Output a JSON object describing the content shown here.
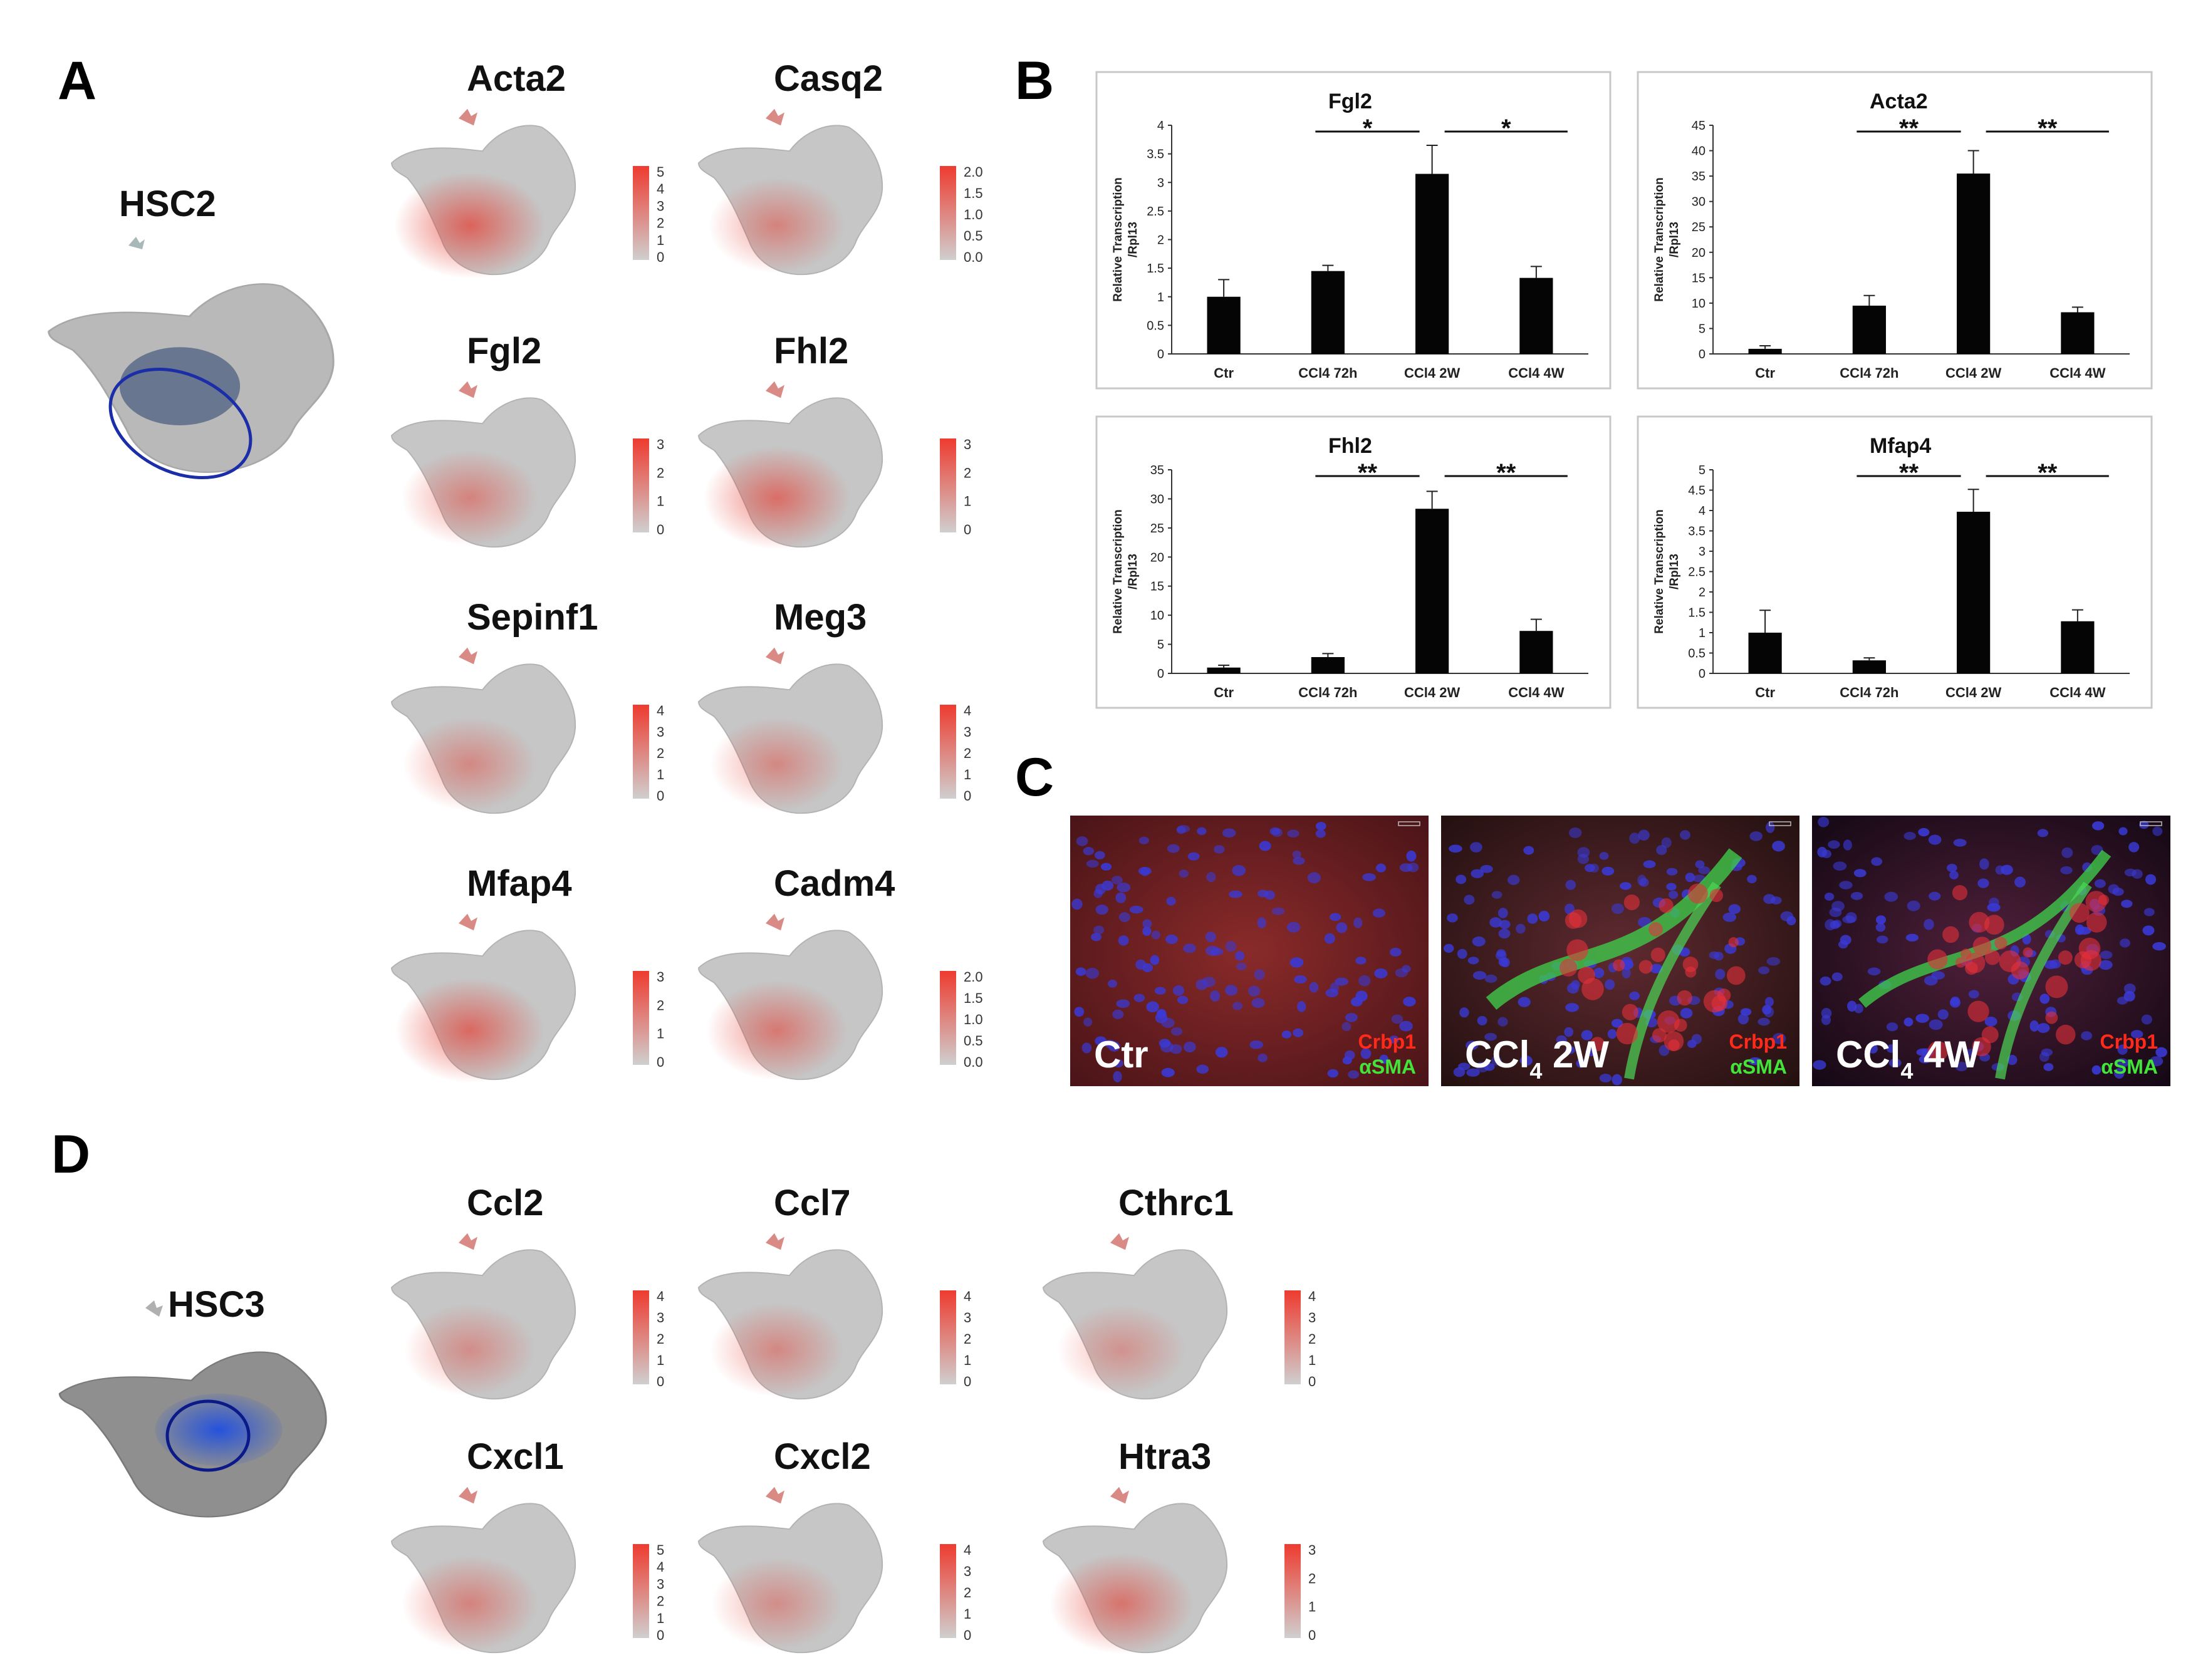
{
  "panel_labels": {
    "A": "A",
    "B": "B",
    "C": "C",
    "D": "D"
  },
  "colors": {
    "grey": "#c4c4c4",
    "red": "#e8453c",
    "cluster_blue": "#1b2ea8",
    "hsc3_blue": "#1f4fe0"
  },
  "cluster_maps": [
    {
      "label": "HSC2"
    },
    {
      "label": "HSC3"
    }
  ],
  "feature_maps_A": [
    {
      "gene": "Acta2",
      "ticks": [
        "5",
        "4",
        "3",
        "2",
        "1",
        "0"
      ],
      "level": 0.65
    },
    {
      "gene": "Casq2",
      "ticks": [
        "2.0",
        "1.5",
        "1.0",
        "0.5",
        "0.0"
      ],
      "level": 0.35
    },
    {
      "gene": "Fgl2",
      "ticks": [
        "3",
        "2",
        "1",
        "0"
      ],
      "level": 0.35
    },
    {
      "gene": "Fhl2",
      "ticks": [
        "3",
        "2",
        "1",
        "0"
      ],
      "level": 0.55
    },
    {
      "gene": "Sepinf1",
      "ticks": [
        "4",
        "3",
        "2",
        "1",
        "0"
      ],
      "level": 0.3
    },
    {
      "gene": "Meg3",
      "ticks": [
        "4",
        "3",
        "2",
        "1",
        "0"
      ],
      "level": 0.3
    },
    {
      "gene": "Mfap4",
      "ticks": [
        "3",
        "2",
        "1",
        "0"
      ],
      "level": 0.6
    },
    {
      "gene": "Cadm4",
      "ticks": [
        "2.0",
        "1.5",
        "1.0",
        "0.5",
        "0.0"
      ],
      "level": 0.45
    }
  ],
  "feature_maps_D": [
    {
      "gene": "Ccl2",
      "ticks": [
        "4",
        "3",
        "2",
        "1",
        "0"
      ],
      "level": 0.25
    },
    {
      "gene": "Ccl7",
      "ticks": [
        "4",
        "3",
        "2",
        "1",
        "0"
      ],
      "level": 0.3
    },
    {
      "gene": "Cthrc1",
      "ticks": [
        "4",
        "3",
        "2",
        "1",
        "0"
      ],
      "level": 0.2
    },
    {
      "gene": "Cxcl1",
      "ticks": [
        "5",
        "4",
        "3",
        "2",
        "1",
        "0"
      ],
      "level": 0.35
    },
    {
      "gene": "Cxcl2",
      "ticks": [
        "4",
        "3",
        "2",
        "1",
        "0"
      ],
      "level": 0.25
    },
    {
      "gene": "Htra3",
      "ticks": [
        "3",
        "2",
        "1",
        "0"
      ],
      "level": 0.5
    }
  ],
  "chart_data": [
    {
      "type": "bar",
      "title": "Fgl2",
      "ylabel": [
        "Relative Transcription",
        "/Rpl13"
      ],
      "categories": [
        "Ctr",
        "CCl4 72h",
        "CCl4 2W",
        "CCl4 4W"
      ],
      "values": [
        1.0,
        1.45,
        3.15,
        1.33
      ],
      "errors": [
        0.3,
        0.1,
        0.5,
        0.2
      ],
      "ylim": [
        0,
        4
      ],
      "yticks": [
        "0",
        "0.5",
        "1",
        "1.5",
        "2",
        "2.5",
        "3",
        "3.5",
        "4"
      ],
      "significance": [
        {
          "from": 1,
          "to": 2,
          "label": "*"
        },
        {
          "from": 2,
          "to": 3,
          "label": "*"
        }
      ]
    },
    {
      "type": "bar",
      "title": "Acta2",
      "ylabel": [
        "Relative Transcription",
        "/Rpl13"
      ],
      "categories": [
        "Ctr",
        "CCl4 72h",
        "CCl4 2W",
        "CCl4 4W"
      ],
      "values": [
        1.0,
        9.5,
        35.5,
        8.2
      ],
      "errors": [
        0.6,
        2.0,
        4.5,
        1.0
      ],
      "ylim": [
        0,
        45
      ],
      "yticks": [
        "0",
        "5",
        "10",
        "15",
        "20",
        "25",
        "30",
        "35",
        "40",
        "45"
      ],
      "significance": [
        {
          "from": 1,
          "to": 2,
          "label": "**"
        },
        {
          "from": 2,
          "to": 3,
          "label": "**"
        }
      ]
    },
    {
      "type": "bar",
      "title": "Fhl2",
      "ylabel": [
        "Relative Transcription",
        "/Rpl13"
      ],
      "categories": [
        "Ctr",
        "CCl4 72h",
        "CCl4 2W",
        "CCl4 4W"
      ],
      "values": [
        1.0,
        2.8,
        28.3,
        7.3
      ],
      "errors": [
        0.4,
        0.6,
        3.0,
        2.0
      ],
      "ylim": [
        0,
        35
      ],
      "yticks": [
        "0",
        "5",
        "10",
        "15",
        "20",
        "25",
        "30",
        "35"
      ],
      "significance": [
        {
          "from": 1,
          "to": 2,
          "label": "**"
        },
        {
          "from": 2,
          "to": 3,
          "label": "**"
        }
      ]
    },
    {
      "type": "bar",
      "title": "Mfap4",
      "ylabel": [
        "Relative Transcription",
        "/Rpl13"
      ],
      "categories": [
        "Ctr",
        "CCl4 72h",
        "CCl4 2W",
        "CCl4 4W"
      ],
      "values": [
        1.0,
        0.32,
        3.97,
        1.28
      ],
      "errors": [
        0.55,
        0.06,
        0.55,
        0.28
      ],
      "ylim": [
        0,
        5
      ],
      "yticks": [
        "0",
        "0.5",
        "1",
        "1.5",
        "2",
        "2.5",
        "3",
        "3.5",
        "4",
        "4.5",
        "5"
      ],
      "significance": [
        {
          "from": 1,
          "to": 2,
          "label": "**"
        },
        {
          "from": 2,
          "to": 3,
          "label": "**"
        }
      ]
    }
  ],
  "micrographs": [
    {
      "label": "Ctr",
      "sub": "",
      "tail": "",
      "red": "Crbp1",
      "green": "αSMA"
    },
    {
      "label": "CCl",
      "sub": "4",
      "tail": " 2W",
      "red": "Crbp1",
      "green": "αSMA"
    },
    {
      "label": "CCl",
      "sub": "4",
      "tail": " 4W",
      "red": "Crbp1",
      "green": "αSMA"
    }
  ]
}
